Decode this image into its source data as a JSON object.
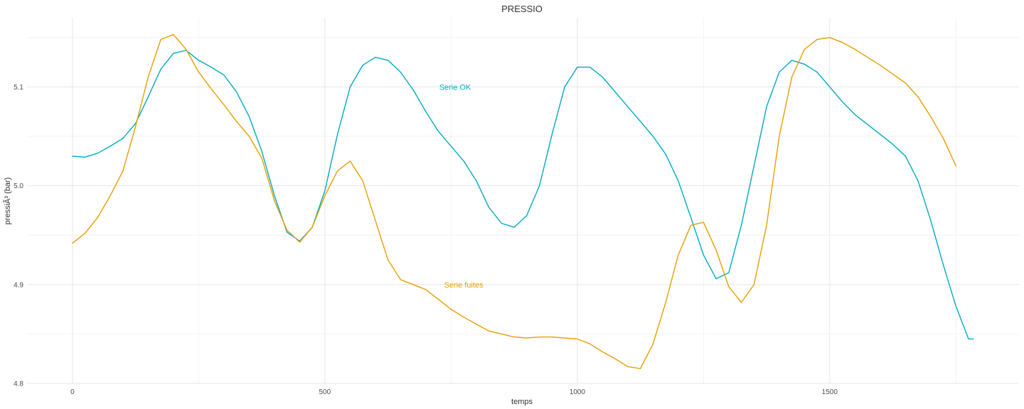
{
  "chart_data": {
    "type": "line",
    "title": "PRESSIO",
    "xlabel": "temps",
    "ylabel": "pressiÃ³ (bar)",
    "xlim": [
      -90,
      1875
    ],
    "ylim": [
      4.8,
      5.17
    ],
    "x_ticks": [
      0,
      500,
      1000,
      1500
    ],
    "x_minor_ticks": [
      250,
      750,
      1250,
      1750
    ],
    "y_ticks": [
      4.8,
      4.9,
      5.0,
      5.1
    ],
    "y_minor_ticks": [
      4.85,
      4.95,
      5.05,
      5.15
    ],
    "x_tick_labels": [
      "0",
      "500",
      "1000",
      "1500"
    ],
    "y_tick_labels": [
      "4.8",
      "4.9",
      "5.0",
      "5.1"
    ],
    "grid": true,
    "legend": "none",
    "series": [
      {
        "name": "Serie OK",
        "color": "#00A9C2",
        "label_at": [
          758,
          5.1
        ],
        "x": [
          0,
          25,
          50,
          75,
          100,
          125,
          150,
          175,
          200,
          225,
          250,
          275,
          300,
          325,
          350,
          375,
          400,
          425,
          450,
          475,
          500,
          525,
          550,
          575,
          600,
          625,
          650,
          675,
          700,
          725,
          750,
          775,
          800,
          825,
          850,
          875,
          900,
          925,
          950,
          975,
          1000,
          1025,
          1050,
          1075,
          1100,
          1125,
          1150,
          1175,
          1200,
          1225,
          1250,
          1275,
          1300,
          1325,
          1350,
          1375,
          1400,
          1425,
          1450,
          1475,
          1500,
          1525,
          1550,
          1575,
          1600,
          1625,
          1650,
          1675,
          1700,
          1725,
          1750,
          1775,
          1785
        ],
        "values": [
          5.03,
          5.029,
          5.033,
          5.04,
          5.048,
          5.063,
          5.09,
          5.118,
          5.134,
          5.137,
          5.127,
          5.12,
          5.112,
          5.095,
          5.07,
          5.035,
          4.99,
          4.953,
          4.944,
          4.958,
          4.995,
          5.052,
          5.1,
          5.122,
          5.13,
          5.127,
          5.115,
          5.097,
          5.075,
          5.055,
          5.04,
          5.025,
          5.005,
          4.978,
          4.962,
          4.958,
          4.97,
          5.0,
          5.052,
          5.1,
          5.12,
          5.12,
          5.11,
          5.095,
          5.08,
          5.065,
          5.05,
          5.032,
          5.005,
          4.968,
          4.93,
          4.906,
          4.912,
          4.96,
          5.02,
          5.08,
          5.115,
          5.127,
          5.123,
          5.115,
          5.1,
          5.085,
          5.072,
          5.062,
          5.052,
          5.042,
          5.03,
          5.005,
          4.965,
          4.92,
          4.878,
          4.845,
          4.845
        ]
      },
      {
        "name": "Serie fuites",
        "color": "#E69F00",
        "label_at": [
          775,
          4.9
        ],
        "x": [
          0,
          25,
          50,
          75,
          100,
          125,
          150,
          175,
          200,
          225,
          250,
          275,
          300,
          325,
          350,
          375,
          400,
          425,
          450,
          475,
          500,
          525,
          550,
          575,
          600,
          625,
          650,
          675,
          700,
          725,
          750,
          775,
          800,
          825,
          850,
          875,
          900,
          925,
          950,
          975,
          1000,
          1025,
          1050,
          1075,
          1100,
          1125,
          1150,
          1175,
          1200,
          1225,
          1250,
          1275,
          1300,
          1325,
          1350,
          1375,
          1400,
          1425,
          1450,
          1475,
          1500,
          1525,
          1550,
          1575,
          1600,
          1625,
          1650,
          1675,
          1700,
          1725,
          1750
        ],
        "values": [
          4.942,
          4.952,
          4.968,
          4.99,
          5.015,
          5.06,
          5.11,
          5.148,
          5.153,
          5.138,
          5.115,
          5.098,
          5.082,
          5.065,
          5.05,
          5.028,
          4.985,
          4.955,
          4.943,
          4.958,
          4.99,
          5.015,
          5.025,
          5.005,
          4.965,
          4.925,
          4.905,
          4.9,
          4.895,
          4.885,
          4.875,
          4.867,
          4.86,
          4.853,
          4.85,
          4.847,
          4.846,
          4.847,
          4.847,
          4.846,
          4.845,
          4.84,
          4.832,
          4.825,
          4.817,
          4.815,
          4.84,
          4.882,
          4.93,
          4.96,
          4.963,
          4.935,
          4.898,
          4.882,
          4.9,
          4.96,
          5.05,
          5.11,
          5.138,
          5.148,
          5.15,
          5.145,
          5.138,
          5.13,
          5.122,
          5.113,
          5.104,
          5.09,
          5.07,
          5.048,
          5.02
        ]
      }
    ]
  }
}
